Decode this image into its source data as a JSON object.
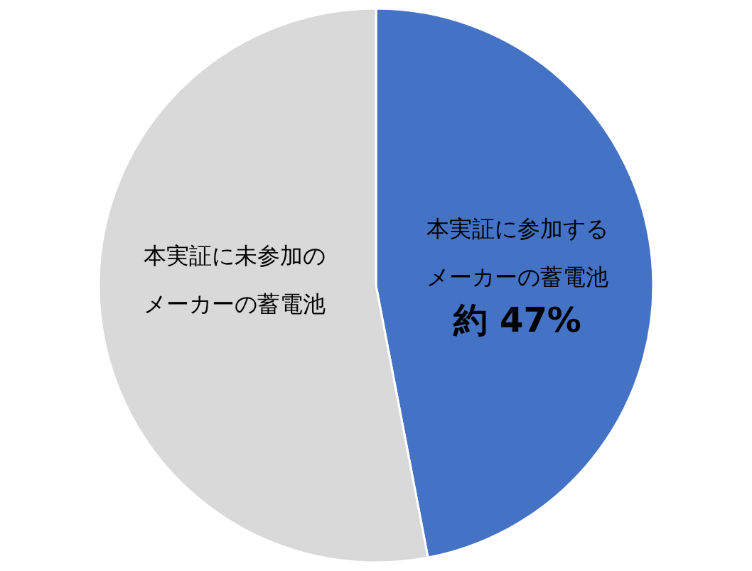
{
  "chart_data": {
    "type": "pie",
    "categories": [
      "本実証に参加するメーカーの蓄電池",
      "本実証に未参加のメーカーの蓄電池"
    ],
    "values": [
      47,
      53
    ],
    "colors": [
      "#4472c4",
      "#d9d9d9"
    ],
    "value_labels": [
      "約 47%",
      null
    ],
    "legend": false
  }
}
